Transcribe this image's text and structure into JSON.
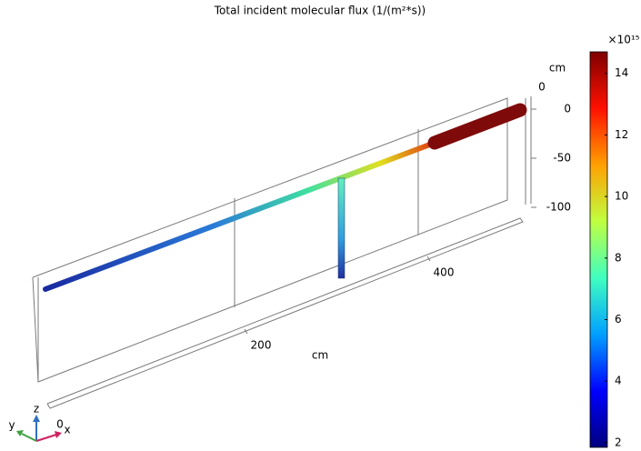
{
  "chart_data": {
    "type": "surface3d",
    "title": "Total incident molecular flux (1/(m²*s))",
    "colorbar": {
      "label": "×10¹⁵",
      "lim": [
        1.85,
        14.7
      ],
      "ticks": [
        2,
        4,
        6,
        8,
        10,
        12,
        14
      ],
      "colors": [
        "#00007f",
        "#0000ff",
        "#00a0ff",
        "#40ffc0",
        "#c0ff40",
        "#ffa000",
        "#ff1000",
        "#7f0000"
      ]
    },
    "xaxis": {
      "label": "cm",
      "ticks": [
        200,
        400
      ]
    },
    "yaxis": {
      "ticks": [
        0
      ]
    },
    "zaxis": {
      "label": "cm",
      "ticks": [
        0,
        -50,
        -100
      ]
    },
    "triad": {
      "z": "z",
      "y": "y",
      "x": "x",
      "origin": "0"
    }
  }
}
